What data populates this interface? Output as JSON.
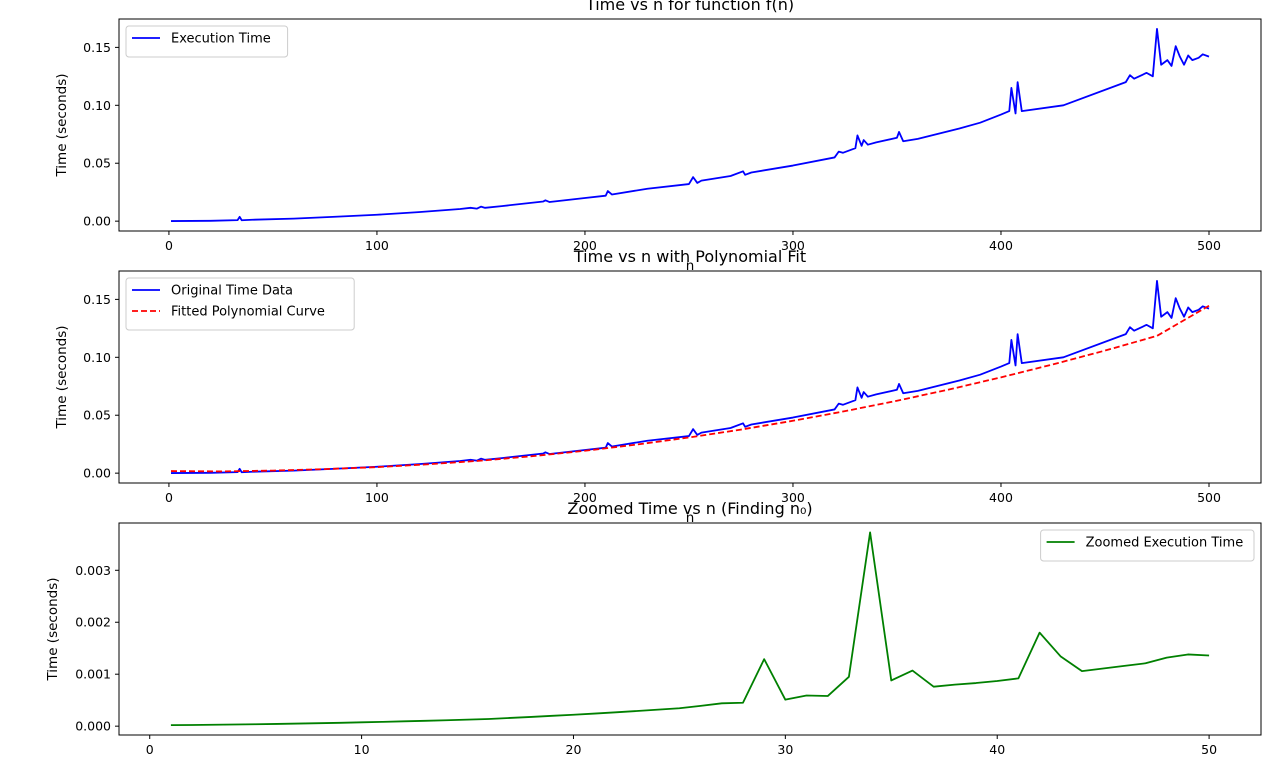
{
  "chart_data": [
    {
      "type": "line",
      "title": "Time vs n for function f(n)",
      "xlabel": "n",
      "ylabel": "Time (seconds)",
      "xlim": [
        -24,
        525
      ],
      "ylim": [
        -0.0085,
        0.1745
      ],
      "xticks": [
        0,
        100,
        200,
        300,
        400,
        500
      ],
      "xtick_labels": [
        "0",
        "100",
        "200",
        "300",
        "400",
        "500"
      ],
      "yticks": [
        0.0,
        0.05,
        0.1,
        0.15
      ],
      "ytick_labels": [
        "0.00",
        "0.05",
        "0.10",
        "0.15"
      ],
      "legend": "upper left",
      "grid": false,
      "series": [
        {
          "name": "Execution Time",
          "color": "#0000ff",
          "style": "solid",
          "x": [
            1,
            20,
            33,
            34,
            35,
            40,
            60,
            80,
            100,
            120,
            140,
            145,
            148,
            150,
            152,
            160,
            180,
            181,
            183,
            200,
            210,
            211,
            213,
            230,
            250,
            252,
            254,
            256,
            270,
            276,
            277,
            280,
            300,
            320,
            322,
            324,
            330,
            331,
            333,
            334,
            336,
            340,
            350,
            351,
            353,
            360,
            380,
            390,
            400,
            404,
            405,
            407,
            408,
            410,
            430,
            460,
            462,
            464,
            470,
            473,
            475,
            477,
            480,
            482,
            484,
            486,
            488,
            490,
            492,
            495,
            497,
            500
          ],
          "y": [
            0.0001,
            0.0003,
            0.0009,
            0.0037,
            0.0008,
            0.0012,
            0.0022,
            0.0038,
            0.0055,
            0.0078,
            0.0105,
            0.0115,
            0.0108,
            0.0125,
            0.0115,
            0.013,
            0.017,
            0.018,
            0.0165,
            0.02,
            0.022,
            0.026,
            0.023,
            0.028,
            0.032,
            0.038,
            0.033,
            0.035,
            0.039,
            0.043,
            0.04,
            0.042,
            0.048,
            0.055,
            0.06,
            0.059,
            0.063,
            0.074,
            0.065,
            0.07,
            0.066,
            0.068,
            0.072,
            0.077,
            0.069,
            0.071,
            0.08,
            0.085,
            0.092,
            0.095,
            0.115,
            0.093,
            0.12,
            0.095,
            0.1,
            0.12,
            0.126,
            0.123,
            0.128,
            0.125,
            0.166,
            0.135,
            0.139,
            0.134,
            0.151,
            0.142,
            0.135,
            0.143,
            0.139,
            0.141,
            0.144,
            0.142
          ]
        }
      ]
    },
    {
      "type": "line",
      "title": "Time vs n with Polynomial Fit",
      "xlabel": "n",
      "ylabel": "Time (seconds)",
      "xlim": [
        -24,
        525
      ],
      "ylim": [
        -0.0085,
        0.1745
      ],
      "xticks": [
        0,
        100,
        200,
        300,
        400,
        500
      ],
      "xtick_labels": [
        "0",
        "100",
        "200",
        "300",
        "400",
        "500"
      ],
      "yticks": [
        0.0,
        0.05,
        0.1,
        0.15
      ],
      "ytick_labels": [
        "0.00",
        "0.05",
        "0.10",
        "0.15"
      ],
      "legend": "upper left",
      "grid": false,
      "series": [
        {
          "name": "Original Time Data",
          "color": "#0000ff",
          "style": "solid",
          "x": [
            1,
            20,
            33,
            34,
            35,
            40,
            60,
            80,
            100,
            120,
            140,
            145,
            148,
            150,
            152,
            160,
            180,
            181,
            183,
            200,
            210,
            211,
            213,
            230,
            250,
            252,
            254,
            256,
            270,
            276,
            277,
            280,
            300,
            320,
            322,
            324,
            330,
            331,
            333,
            334,
            336,
            340,
            350,
            351,
            353,
            360,
            380,
            390,
            400,
            404,
            405,
            407,
            408,
            410,
            430,
            460,
            462,
            464,
            470,
            473,
            475,
            477,
            480,
            482,
            484,
            486,
            488,
            490,
            492,
            495,
            497,
            500
          ],
          "y": [
            0.0001,
            0.0003,
            0.0009,
            0.0037,
            0.0008,
            0.0012,
            0.0022,
            0.0038,
            0.0055,
            0.0078,
            0.0105,
            0.0115,
            0.0108,
            0.0125,
            0.0115,
            0.013,
            0.017,
            0.018,
            0.0165,
            0.02,
            0.022,
            0.026,
            0.023,
            0.028,
            0.032,
            0.038,
            0.033,
            0.035,
            0.039,
            0.043,
            0.04,
            0.042,
            0.048,
            0.055,
            0.06,
            0.059,
            0.063,
            0.074,
            0.065,
            0.07,
            0.066,
            0.068,
            0.072,
            0.077,
            0.069,
            0.071,
            0.08,
            0.085,
            0.092,
            0.095,
            0.115,
            0.093,
            0.12,
            0.095,
            0.1,
            0.12,
            0.126,
            0.123,
            0.128,
            0.125,
            0.166,
            0.135,
            0.139,
            0.134,
            0.151,
            0.142,
            0.135,
            0.143,
            0.139,
            0.141,
            0.144,
            0.142
          ]
        },
        {
          "name": "Fitted Polynomial Curve",
          "color": "#ff0000",
          "style": "dashed",
          "x": [
            1,
            25,
            50,
            75,
            100,
            125,
            150,
            175,
            200,
            225,
            250,
            275,
            300,
            325,
            350,
            375,
            400,
            425,
            450,
            475,
            500
          ],
          "y": [
            0.0018,
            0.0015,
            0.0022,
            0.0035,
            0.0052,
            0.0077,
            0.0108,
            0.0147,
            0.0193,
            0.0247,
            0.0308,
            0.0376,
            0.0452,
            0.0535,
            0.0625,
            0.0722,
            0.0827,
            0.0939,
            0.1058,
            0.1185,
            0.1445
          ]
        }
      ]
    },
    {
      "type": "line",
      "title": "Zoomed Time vs n (Finding n₀)",
      "xlabel": "",
      "ylabel": "Time (seconds)",
      "xlim": [
        -1.45,
        52.45
      ],
      "ylim": [
        -0.00017,
        0.00391
      ],
      "xticks": [
        0,
        10,
        20,
        30,
        40,
        50
      ],
      "xtick_labels": [
        "0",
        "10",
        "20",
        "30",
        "40",
        "50"
      ],
      "yticks": [
        0.0,
        0.001,
        0.002,
        0.003
      ],
      "ytick_labels": [
        "0.000",
        "0.001",
        "0.002",
        "0.003"
      ],
      "legend": "upper right",
      "grid": false,
      "series": [
        {
          "name": "Zoomed Execution Time",
          "color": "#008000",
          "style": "solid",
          "x": [
            1,
            2,
            3,
            4,
            5,
            6,
            7,
            8,
            9,
            10,
            11,
            12,
            13,
            14,
            15,
            16,
            17,
            18,
            19,
            20,
            21,
            22,
            23,
            24,
            25,
            26,
            27,
            28,
            29,
            30,
            31,
            32,
            33,
            34,
            35,
            36,
            37,
            38,
            39,
            40,
            41,
            42,
            43,
            44,
            45,
            46,
            47,
            48,
            49,
            50
          ],
          "y": [
            2e-05,
            2.3e-05,
            2.7e-05,
            3.2e-05,
            3.7e-05,
            4.3e-05,
            5e-05,
            5.7e-05,
            6.5e-05,
            7.4e-05,
            8.3e-05,
            9.3e-05,
            0.000103,
            0.000114,
            0.000126,
            0.000138,
            0.000158,
            0.000178,
            0.000199,
            0.00022,
            0.000243,
            0.000267,
            0.000292,
            0.000318,
            0.000345,
            0.00039,
            0.00044,
            0.00045,
            0.00129,
            0.00051,
            0.00059,
            0.00058,
            0.00095,
            0.00373,
            0.00088,
            0.00107,
            0.00076,
            0.0008,
            0.00083,
            0.00087,
            0.00092,
            0.0018,
            0.00134,
            0.00106,
            0.00111,
            0.00116,
            0.00121,
            0.00132,
            0.00138,
            0.00136
          ]
        }
      ]
    }
  ]
}
